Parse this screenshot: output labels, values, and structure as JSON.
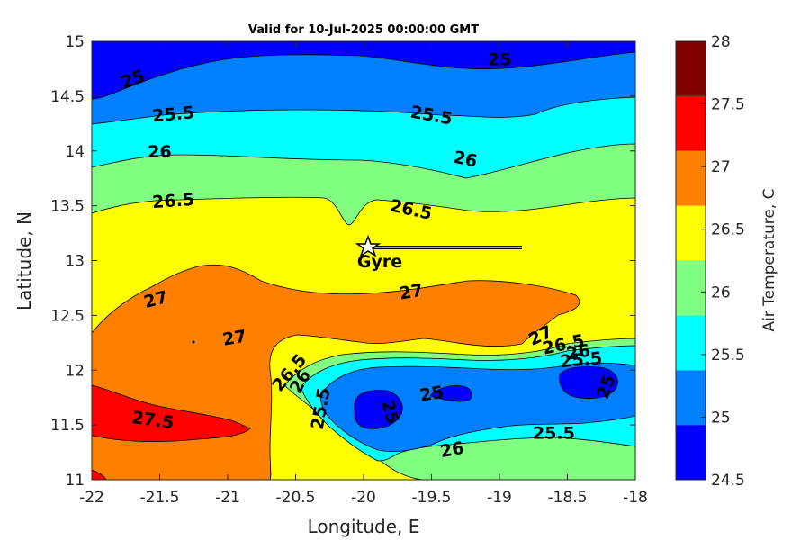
{
  "chart_data": {
    "type": "contour",
    "title": "Valid for 10-Jul-2025 00:00:00 GMT",
    "xlabel": "Longitude, E",
    "ylabel": "Latitude, N",
    "xlim": [
      -22,
      -18
    ],
    "ylim": [
      11,
      15
    ],
    "x_ticks": [
      "-22",
      "-21.5",
      "-21",
      "-20.5",
      "-20",
      "-19.5",
      "-19",
      "-18.5",
      "-18"
    ],
    "y_ticks": [
      "11",
      "11.5",
      "12",
      "12.5",
      "13",
      "13.5",
      "14",
      "14.5",
      "15"
    ],
    "colorbar": {
      "label": "Air Temperature, C",
      "range": [
        24.5,
        28
      ],
      "ticks": [
        "24.5",
        "25",
        "25.5",
        "26",
        "26.5",
        "27",
        "27.5",
        "28"
      ],
      "band_colors": [
        "#0000ff",
        "#0080ff",
        "#00ffff",
        "#80ff80",
        "#ffff00",
        "#ff8000",
        "#ff0000",
        "#800000"
      ]
    },
    "contour_labels": [
      {
        "text": "25",
        "lon": -21.7,
        "lat": 14.66,
        "angle": -20
      },
      {
        "text": "25",
        "lon": -19.0,
        "lat": 14.84,
        "angle": 0
      },
      {
        "text": "25.5",
        "lon": -21.4,
        "lat": 14.34,
        "angle": -5
      },
      {
        "text": "25.5",
        "lon": -19.5,
        "lat": 14.33,
        "angle": 10
      },
      {
        "text": "26",
        "lon": -21.5,
        "lat": 14.0,
        "angle": 0
      },
      {
        "text": "26",
        "lon": -19.25,
        "lat": 13.93,
        "angle": 12
      },
      {
        "text": "26.5",
        "lon": -21.4,
        "lat": 13.55,
        "angle": -4
      },
      {
        "text": "26.5",
        "lon": -19.65,
        "lat": 13.47,
        "angle": 12
      },
      {
        "text": "27",
        "lon": -21.53,
        "lat": 12.65,
        "angle": -15
      },
      {
        "text": "27",
        "lon": -19.65,
        "lat": 12.72,
        "angle": -10
      },
      {
        "text": "27",
        "lon": -20.95,
        "lat": 12.3,
        "angle": -10
      },
      {
        "text": "27",
        "lon": -18.7,
        "lat": 12.32,
        "angle": -25
      },
      {
        "text": "26.5",
        "lon": -18.53,
        "lat": 12.24,
        "angle": -12
      },
      {
        "text": "26",
        "lon": -18.42,
        "lat": 12.17,
        "angle": -10
      },
      {
        "text": "25.5",
        "lon": -18.4,
        "lat": 12.1,
        "angle": -5
      },
      {
        "text": "26.5",
        "lon": -20.55,
        "lat": 11.98,
        "angle": -50
      },
      {
        "text": "26",
        "lon": -20.47,
        "lat": 11.9,
        "angle": -60
      },
      {
        "text": "25.5",
        "lon": -20.32,
        "lat": 11.65,
        "angle": -80
      },
      {
        "text": "25",
        "lon": -19.8,
        "lat": 11.62,
        "angle": 75
      },
      {
        "text": "25",
        "lon": -19.5,
        "lat": 11.79,
        "angle": -10
      },
      {
        "text": "25",
        "lon": -18.22,
        "lat": 11.85,
        "angle": -70
      },
      {
        "text": "25.5",
        "lon": -18.6,
        "lat": 11.43,
        "angle": 0
      },
      {
        "text": "26",
        "lon": -19.35,
        "lat": 11.28,
        "angle": -10
      },
      {
        "text": "27.5",
        "lon": -21.55,
        "lat": 11.55,
        "angle": 8
      }
    ],
    "marker": {
      "label": "Gyre",
      "lon": -19.97,
      "lat": 13.11,
      "track_end_lon": -18.85
    }
  }
}
